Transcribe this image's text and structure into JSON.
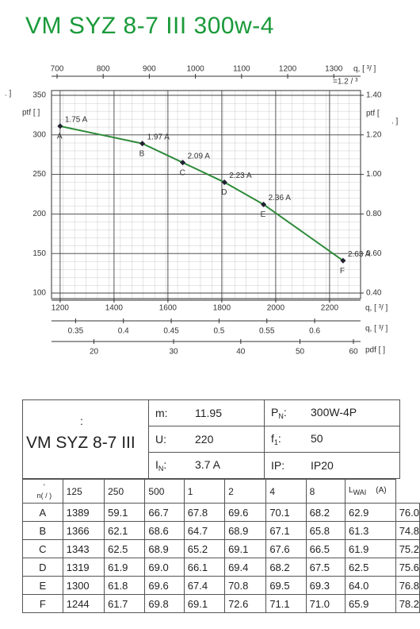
{
  "title": "VM SYZ 8-7 III 300w-4",
  "chart_data": {
    "type": "line",
    "xlim": [
      1168,
      2315
    ],
    "xticks": [
      1200,
      1400,
      1600,
      1800,
      2000,
      2200
    ],
    "xlabel": "q, [  ³/  ]",
    "top_axis": {
      "lim": [
        688,
        1358
      ],
      "ticks": [
        700,
        800,
        900,
        1000,
        1100,
        1200,
        1300
      ],
      "label": "q, [  ³/  ]",
      "note": "=1.2  /  ³"
    },
    "flow_axis": {
      "lim": [
        0.3248,
        0.648
      ],
      "ticks": [
        0.35,
        0.4,
        0.45,
        0.5,
        0.55,
        0.6
      ],
      "label": "q, [  ³/  ]"
    },
    "dynamic_axis": {
      "lim": [
        15.5,
        61.4
      ],
      "scale": "sqrt",
      "ticks": [
        20,
        30,
        40,
        50,
        60
      ],
      "label": "pdf [    ]"
    },
    "ylim": [
      100,
      350
    ],
    "yticks": [
      100,
      150,
      200,
      250,
      300,
      350
    ],
    "ylabel": "ptf [   ]",
    "ylabel_note": ".     ]",
    "y2lim": [
      0.4,
      1.4
    ],
    "y2ticks": [
      {
        "value": 0.4,
        "label": "0.40"
      },
      {
        "value": 0.6,
        "label": "0.60"
      },
      {
        "value": 0.8,
        "label": "0.80"
      },
      {
        "value": 1.0,
        "label": "1.00"
      },
      {
        "value": 1.2,
        "label": "1.20"
      },
      {
        "value": 1.4,
        "label": "1.40"
      }
    ],
    "y2label": "ptf [",
    "y2label_note": ".    ]",
    "grid": true,
    "series": [
      {
        "color": "#2e8b3a",
        "x": [
          1200,
          1505,
          1655,
          1810,
          1955,
          2250
        ],
        "values": [
          311,
          289,
          265,
          240,
          212,
          141
        ],
        "point_labels": [
          "A",
          "B",
          "C",
          "D",
          "E",
          "F"
        ],
        "current_labels": [
          "1.75 A",
          "1.97 A",
          "2.09 A",
          "2.23 A",
          "2.36 A",
          "2.63 A"
        ]
      }
    ]
  },
  "spec": {
    "note": ":",
    "name": "VM SYZ 8-7 III",
    "items": [
      {
        "symbol": "m",
        "colon": ":",
        "value": "11.95"
      },
      {
        "symbol": "P",
        "sub": "N",
        "colon": ":",
        "value": "300W-4P"
      },
      {
        "symbol": "U",
        "colon": ":",
        "value": "220"
      },
      {
        "symbol": "f",
        "sub": "1",
        "colon": ":",
        "value": "50"
      },
      {
        "symbol": "I",
        "sub": "N",
        "colon": ":",
        "value": "3.7  A"
      },
      {
        "symbol": "IP",
        "colon": ":",
        "value": "IP20"
      }
    ]
  },
  "table": {
    "header": [
      "'\nn(  /  )",
      "125",
      "250",
      "500",
      "1",
      "2",
      "4",
      "8"
    ],
    "last_header": {
      "symbol": "L",
      "sub": "WAI",
      "unit": "(A)"
    },
    "rows": [
      [
        "A",
        "1389",
        "59.1",
        "66.7",
        "67.8",
        "69.6",
        "70.1",
        "68.2",
        "62.9",
        "76.0"
      ],
      [
        "B",
        "1366",
        "62.1",
        "68.6",
        "64.7",
        "68.9",
        "67.1",
        "65.8",
        "61.3",
        "74.8"
      ],
      [
        "C",
        "1343",
        "62.5",
        "68.9",
        "65.2",
        "69.1",
        "67.6",
        "66.5",
        "61.9",
        "75.2"
      ],
      [
        "D",
        "1319",
        "61.9",
        "69.0",
        "66.1",
        "69.4",
        "68.2",
        "67.5",
        "62.5",
        "75.6"
      ],
      [
        "E",
        "1300",
        "61.8",
        "69.6",
        "67.4",
        "70.8",
        "69.5",
        "69.3",
        "64.0",
        "76.8"
      ],
      [
        "F",
        "1244",
        "61.7",
        "69.8",
        "69.1",
        "72.6",
        "71.1",
        "71.0",
        "65.9",
        "78.2"
      ]
    ]
  }
}
